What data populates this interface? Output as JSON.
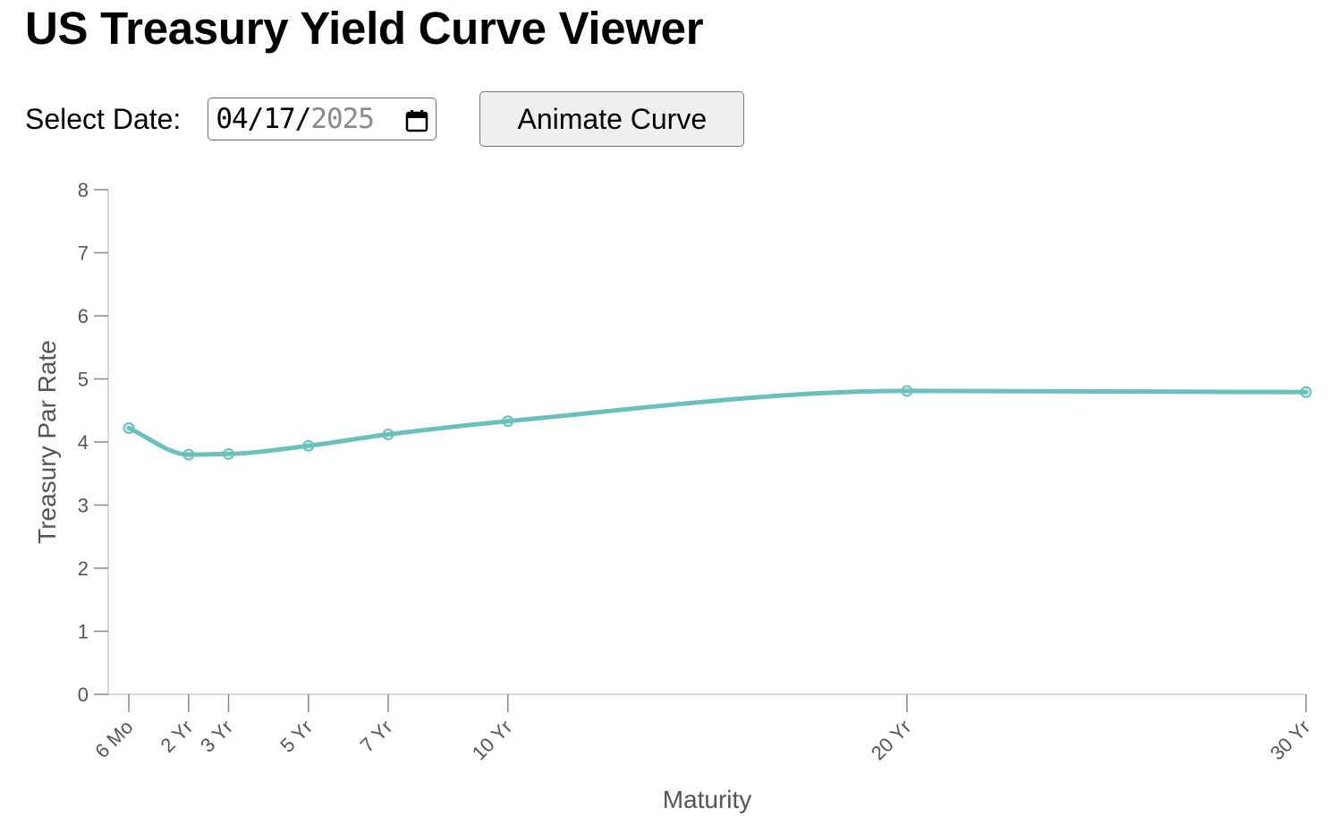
{
  "page": {
    "title": "US Treasury Yield Curve Viewer"
  },
  "controls": {
    "date_label": "Select Date:",
    "date_month": "04",
    "date_day": "17",
    "date_year": "2025",
    "date_separator": "/",
    "calendar_icon": "calendar-icon",
    "animate_label": "Animate Curve"
  },
  "colors": {
    "curve": "#6cc0bb",
    "axis": "#cccccc",
    "tick_text": "#555555"
  },
  "chart_data": {
    "type": "line",
    "title": "",
    "xlabel": "Maturity",
    "ylabel": "Treasury Par Rate",
    "x_scale": "years",
    "x_domain": [
      0.5,
      30
    ],
    "ylim": [
      0,
      8
    ],
    "y_ticks": [
      0,
      1,
      2,
      3,
      4,
      5,
      6,
      7,
      8
    ],
    "grid": false,
    "legend": "none",
    "curve": "smooth",
    "x_ticks": [
      {
        "label": "6 Mo",
        "years": 0.5
      },
      {
        "label": "2 Yr",
        "years": 2
      },
      {
        "label": "3 Yr",
        "years": 3
      },
      {
        "label": "5 Yr",
        "years": 5
      },
      {
        "label": "7 Yr",
        "years": 7
      },
      {
        "label": "10 Yr",
        "years": 10
      },
      {
        "label": "20 Yr",
        "years": 20
      },
      {
        "label": "30 Yr",
        "years": 30
      }
    ],
    "series": [
      {
        "points": [
          {
            "maturity": "6 Mo",
            "years": 0.5,
            "rate": 4.22
          },
          {
            "maturity": "2 Yr",
            "years": 2,
            "rate": 3.8
          },
          {
            "maturity": "3 Yr",
            "years": 3,
            "rate": 3.81
          },
          {
            "maturity": "5 Yr",
            "years": 5,
            "rate": 3.94
          },
          {
            "maturity": "7 Yr",
            "years": 7,
            "rate": 4.12
          },
          {
            "maturity": "10 Yr",
            "years": 10,
            "rate": 4.33
          },
          {
            "maturity": "20 Yr",
            "years": 20,
            "rate": 4.81
          },
          {
            "maturity": "30 Yr",
            "years": 30,
            "rate": 4.79
          }
        ]
      }
    ]
  }
}
